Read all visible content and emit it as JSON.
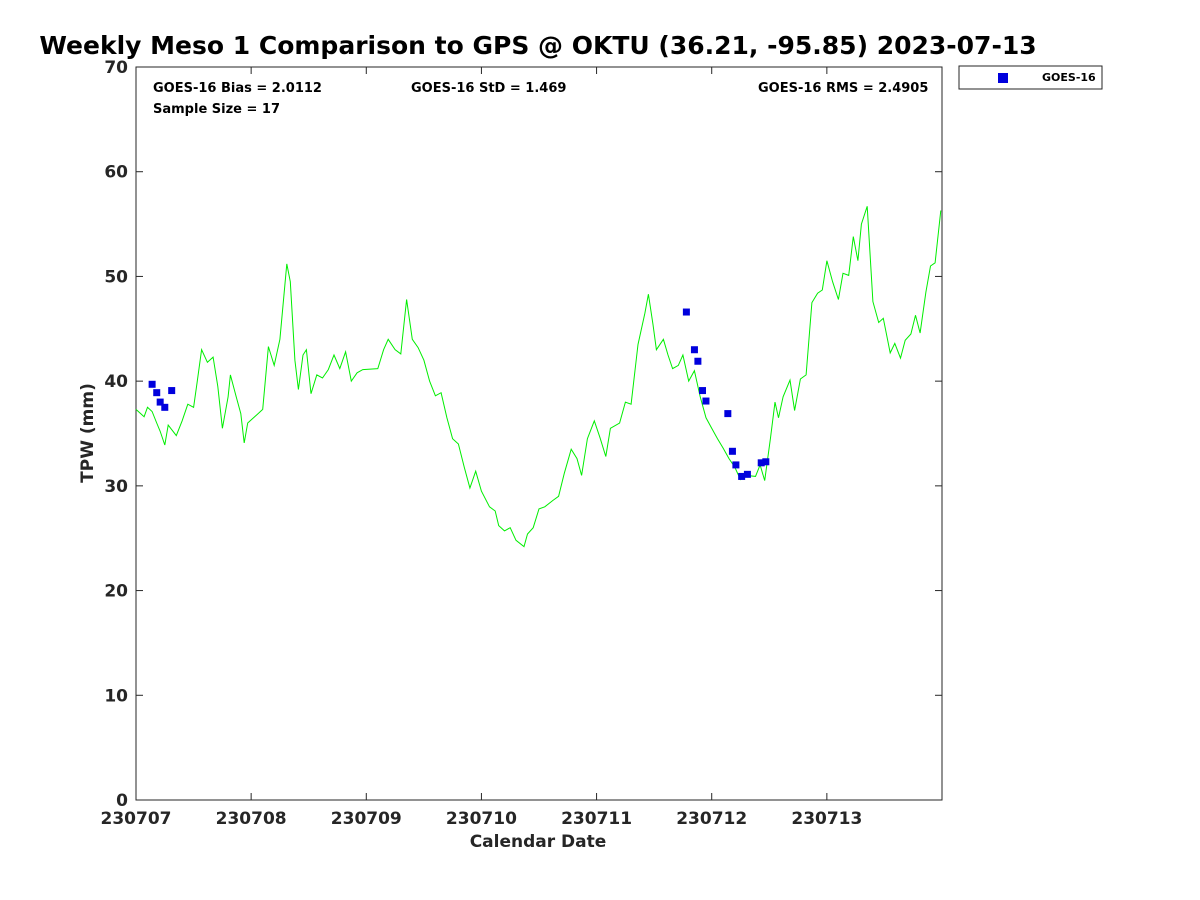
{
  "chart_data": {
    "type": "scatter",
    "title": "Weekly Meso 1 Comparison to GPS @ OKTU (36.21, -95.85) 2023-07-13",
    "xlabel": "Calendar Date",
    "ylabel": "TPW (mm)",
    "xlim": [
      230707,
      230714
    ],
    "ylim": [
      0,
      70
    ],
    "x_ticks": [
      {
        "value": 230707,
        "label": "230707"
      },
      {
        "value": 230708,
        "label": "230708"
      },
      {
        "value": 230709,
        "label": "230709"
      },
      {
        "value": 230710,
        "label": "230710"
      },
      {
        "value": 230711,
        "label": "230711"
      },
      {
        "value": 230712,
        "label": "230712"
      },
      {
        "value": 230713,
        "label": "230713"
      }
    ],
    "y_ticks": [
      {
        "value": 0,
        "label": "0"
      },
      {
        "value": 10,
        "label": "10"
      },
      {
        "value": 20,
        "label": "20"
      },
      {
        "value": 30,
        "label": "30"
      },
      {
        "value": 40,
        "label": "40"
      },
      {
        "value": 50,
        "label": "50"
      },
      {
        "value": 60,
        "label": "60"
      },
      {
        "value": 70,
        "label": "70"
      }
    ],
    "grid": false,
    "legend_position": "top-right, outside plot",
    "stats": {
      "bias": "GOES-16 Bias = 2.0112",
      "std": "GOES-16 StD = 1.469",
      "rms": "GOES-16 RMS = 2.4905",
      "sample": "Sample Size = 17"
    },
    "series": [
      {
        "name": "GOES-16",
        "kind": "scatter",
        "color": "#0000dd",
        "marker": "square",
        "points": [
          [
            230707.14,
            39.7
          ],
          [
            230707.18,
            38.9
          ],
          [
            230707.21,
            38.0
          ],
          [
            230707.25,
            37.5
          ],
          [
            230707.31,
            39.1
          ],
          [
            230711.78,
            46.6
          ],
          [
            230711.85,
            43.0
          ],
          [
            230711.88,
            41.9
          ],
          [
            230711.92,
            39.1
          ],
          [
            230711.95,
            38.1
          ],
          [
            230712.14,
            36.9
          ],
          [
            230712.18,
            33.3
          ],
          [
            230712.21,
            32.0
          ],
          [
            230712.26,
            30.9
          ],
          [
            230712.31,
            31.1
          ],
          [
            230712.43,
            32.2
          ],
          [
            230712.47,
            32.3
          ]
        ]
      },
      {
        "kind": "line",
        "color": "#00ee00",
        "points": [
          [
            230707.0,
            37.3
          ],
          [
            230707.07,
            36.6
          ],
          [
            230707.1,
            37.5
          ],
          [
            230707.14,
            37.1
          ],
          [
            230707.18,
            36.0
          ],
          [
            230707.21,
            35.2
          ],
          [
            230707.25,
            33.9
          ],
          [
            230707.28,
            35.8
          ],
          [
            230707.35,
            34.8
          ],
          [
            230707.4,
            36.2
          ],
          [
            230707.45,
            37.8
          ],
          [
            230707.5,
            37.5
          ],
          [
            230707.53,
            39.8
          ],
          [
            230707.57,
            43.0
          ],
          [
            230707.62,
            41.8
          ],
          [
            230707.67,
            42.3
          ],
          [
            230707.71,
            39.5
          ],
          [
            230707.75,
            35.5
          ],
          [
            230707.8,
            38.5
          ],
          [
            230707.82,
            40.6
          ],
          [
            230707.87,
            38.5
          ],
          [
            230707.91,
            36.9
          ],
          [
            230707.94,
            34.1
          ],
          [
            230707.97,
            36.0
          ],
          [
            230708.05,
            36.8
          ],
          [
            230708.1,
            37.3
          ],
          [
            230708.15,
            43.3
          ],
          [
            230708.2,
            41.5
          ],
          [
            230708.25,
            44.0
          ],
          [
            230708.31,
            51.2
          ],
          [
            230708.34,
            49.5
          ],
          [
            230708.38,
            42.0
          ],
          [
            230708.41,
            39.2
          ],
          [
            230708.45,
            42.5
          ],
          [
            230708.48,
            43.0
          ],
          [
            230708.52,
            38.8
          ],
          [
            230708.57,
            40.6
          ],
          [
            230708.62,
            40.3
          ],
          [
            230708.67,
            41.1
          ],
          [
            230708.72,
            42.5
          ],
          [
            230708.77,
            41.2
          ],
          [
            230708.82,
            42.8
          ],
          [
            230708.87,
            40.0
          ],
          [
            230708.92,
            40.8
          ],
          [
            230708.97,
            41.1
          ],
          [
            230709.1,
            41.2
          ],
          [
            230709.15,
            43.0
          ],
          [
            230709.19,
            44.0
          ],
          [
            230709.25,
            43.0
          ],
          [
            230709.3,
            42.6
          ],
          [
            230709.35,
            47.8
          ],
          [
            230709.4,
            44.0
          ],
          [
            230709.45,
            43.2
          ],
          [
            230709.5,
            42.0
          ],
          [
            230709.55,
            40.0
          ],
          [
            230709.6,
            38.6
          ],
          [
            230709.65,
            38.9
          ],
          [
            230709.7,
            36.5
          ],
          [
            230709.75,
            34.5
          ],
          [
            230709.8,
            34.0
          ],
          [
            230709.85,
            31.8
          ],
          [
            230709.9,
            29.8
          ],
          [
            230709.95,
            31.4
          ],
          [
            230710.0,
            29.5
          ],
          [
            230710.07,
            28.0
          ],
          [
            230710.12,
            27.6
          ],
          [
            230710.15,
            26.2
          ],
          [
            230710.2,
            25.7
          ],
          [
            230710.25,
            26.0
          ],
          [
            230710.3,
            24.8
          ],
          [
            230710.37,
            24.2
          ],
          [
            230710.4,
            25.4
          ],
          [
            230710.45,
            26.0
          ],
          [
            230710.5,
            27.8
          ],
          [
            230710.55,
            28.0
          ],
          [
            230710.62,
            28.6
          ],
          [
            230710.67,
            29.0
          ],
          [
            230710.72,
            31.2
          ],
          [
            230710.78,
            33.5
          ],
          [
            230710.83,
            32.6
          ],
          [
            230710.87,
            31.0
          ],
          [
            230710.92,
            34.5
          ],
          [
            230710.98,
            36.2
          ],
          [
            230711.03,
            34.6
          ],
          [
            230711.08,
            32.8
          ],
          [
            230711.12,
            35.5
          ],
          [
            230711.2,
            36.0
          ],
          [
            230711.25,
            38.0
          ],
          [
            230711.3,
            37.8
          ],
          [
            230711.36,
            43.5
          ],
          [
            230711.42,
            46.5
          ],
          [
            230711.45,
            48.3
          ],
          [
            230711.49,
            45.4
          ],
          [
            230711.52,
            43.0
          ],
          [
            230711.58,
            44.0
          ],
          [
            230711.62,
            42.5
          ],
          [
            230711.66,
            41.2
          ],
          [
            230711.71,
            41.5
          ],
          [
            230711.75,
            42.5
          ],
          [
            230711.8,
            40.0
          ],
          [
            230711.85,
            41.0
          ],
          [
            230711.9,
            38.5
          ],
          [
            230711.95,
            36.5
          ],
          [
            230712.0,
            35.5
          ],
          [
            230712.05,
            34.5
          ],
          [
            230712.1,
            33.6
          ],
          [
            230712.15,
            32.6
          ],
          [
            230712.2,
            31.8
          ],
          [
            230712.25,
            30.6
          ],
          [
            230712.3,
            31.0
          ],
          [
            230712.38,
            30.9
          ],
          [
            230712.42,
            32.0
          ],
          [
            230712.46,
            30.5
          ],
          [
            230712.51,
            34.5
          ],
          [
            230712.55,
            38.0
          ],
          [
            230712.58,
            36.5
          ],
          [
            230712.62,
            38.5
          ],
          [
            230712.68,
            40.1
          ],
          [
            230712.72,
            37.2
          ],
          [
            230712.77,
            40.2
          ],
          [
            230712.82,
            40.6
          ],
          [
            230712.87,
            47.5
          ],
          [
            230712.92,
            48.4
          ],
          [
            230712.96,
            48.7
          ],
          [
            230713.0,
            51.5
          ],
          [
            230713.05,
            49.5
          ],
          [
            230713.1,
            47.8
          ],
          [
            230713.14,
            50.3
          ],
          [
            230713.19,
            50.1
          ],
          [
            230713.23,
            53.8
          ],
          [
            230713.27,
            51.5
          ],
          [
            230713.3,
            55.0
          ],
          [
            230713.35,
            56.7
          ],
          [
            230713.4,
            47.6
          ],
          [
            230713.45,
            45.6
          ],
          [
            230713.49,
            46.0
          ],
          [
            230713.55,
            42.7
          ],
          [
            230713.59,
            43.6
          ],
          [
            230713.64,
            42.2
          ],
          [
            230713.68,
            43.9
          ],
          [
            230713.73,
            44.5
          ],
          [
            230713.77,
            46.3
          ],
          [
            230713.81,
            44.6
          ],
          [
            230713.86,
            48.5
          ],
          [
            230713.9,
            51.0
          ],
          [
            230713.94,
            51.3
          ],
          [
            230713.99,
            56.3
          ]
        ]
      }
    ]
  }
}
